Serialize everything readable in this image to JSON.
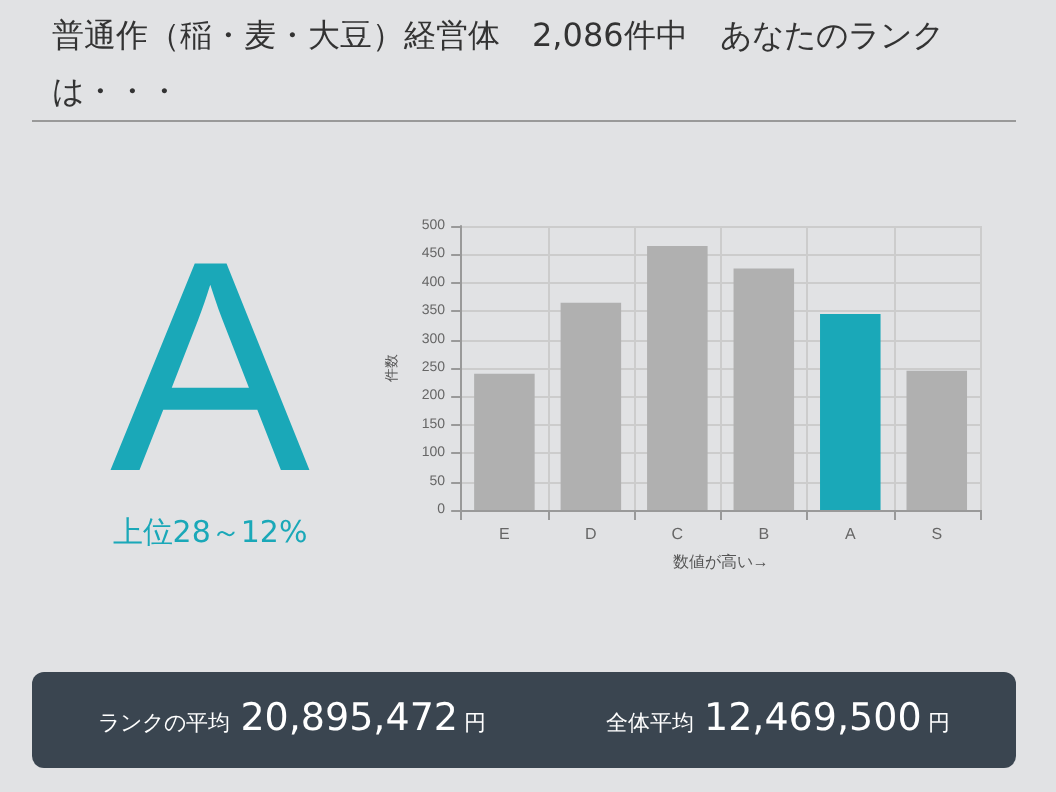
{
  "chart_data": {
    "type": "bar",
    "title": "普通作（稲・麦・大豆）経営体　2,086件中　あなたのランクは・・・",
    "categories": [
      "E",
      "D",
      "C",
      "B",
      "A",
      "S"
    ],
    "values": [
      240,
      365,
      465,
      425,
      345,
      245
    ],
    "colors": [
      "#b0b0b0",
      "#b0b0b0",
      "#b0b0b0",
      "#b0b0b0",
      "#1aa8b8",
      "#b0b0b0"
    ],
    "ylabel": "件数",
    "xlabel": "数値が高い→",
    "ylim": [
      0,
      500
    ],
    "yticks": [
      0,
      50,
      100,
      150,
      200,
      250,
      300,
      350,
      400,
      450,
      500
    ],
    "grid": true,
    "annotations": [
      "A",
      "上位28～12%",
      "ランクの平均",
      "20,895,472",
      "円",
      "全体平均",
      "12,469,500",
      "円"
    ]
  }
}
